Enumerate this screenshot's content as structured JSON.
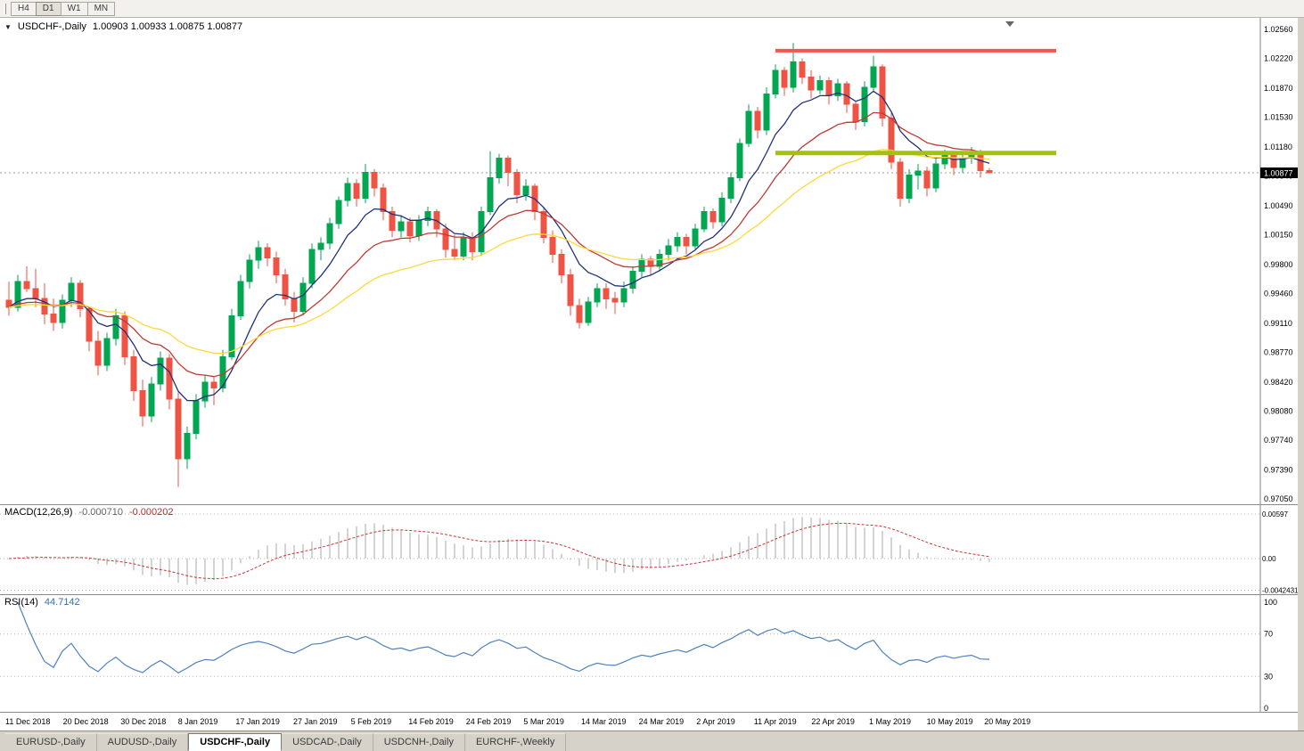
{
  "icons": {
    "dropdown": "▼",
    "shift_marker": "triangle-down"
  },
  "colors": {
    "up": "#00a650",
    "down": "#ef5343",
    "ma_fast": "#20317c",
    "ma_mid": "#c03a32",
    "ma_slow": "#ffd83a",
    "macd_hist": "#a8a8a8",
    "macd_signal": "#cc3333",
    "rsi_line": "#4f81bd",
    "resistance_line": "#f4564a",
    "support_line": "#a4c20a",
    "price_tag_bg": "#000000",
    "price_tag_text": "#ffffff",
    "dotted_level": "#b5b5b5",
    "current_price_line": "#999999"
  },
  "toolbar": {
    "timeframes": [
      {
        "label": "H4",
        "active": false
      },
      {
        "label": "D1",
        "active": true
      },
      {
        "label": "W1",
        "active": false
      },
      {
        "label": "MN",
        "active": false
      }
    ]
  },
  "chart_header": {
    "symbol": "USDCHF-,Daily",
    "ohlc_text": "1.00903 1.00933 1.00875 1.00877"
  },
  "price_axis": {
    "labels": [
      "1.02560",
      "1.02220",
      "1.01870",
      "1.01530",
      "1.01180",
      "1.00840",
      "1.00490",
      "1.00150",
      "0.99800",
      "0.99460",
      "0.99110",
      "0.98770",
      "0.98420",
      "0.98080",
      "0.97740",
      "0.97390",
      "0.97050"
    ],
    "current_price_label": "1.00877"
  },
  "macd_panel": {
    "name": "MACD(12,26,9)",
    "value_main": "-0.000710",
    "value_signal": "-0.000202",
    "scale_labels": [
      "0.00597",
      "0.00",
      "-0.0042431"
    ]
  },
  "rsi_panel": {
    "name": "RSI(14)",
    "value": "44.7142",
    "scale_labels": [
      "100",
      "70",
      "30",
      "0"
    ]
  },
  "date_axis": {
    "labels": [
      "11 Dec 2018",
      "20 Dec 2018",
      "30 Dec 2018",
      "8 Jan 2019",
      "17 Jan 2019",
      "27 Jan 2019",
      "5 Feb 2019",
      "14 Feb 2019",
      "24 Feb 2019",
      "5 Mar 2019",
      "14 Mar 2019",
      "24 Mar 2019",
      "2 Apr 2019",
      "11 Apr 2019",
      "22 Apr 2019",
      "1 May 2019",
      "10 May 2019",
      "20 May 2019"
    ]
  },
  "tabs": {
    "items": [
      {
        "label": "EURUSD-,Daily",
        "active": false
      },
      {
        "label": "AUDUSD-,Daily",
        "active": false
      },
      {
        "label": "USDCHF-,Daily",
        "active": true
      },
      {
        "label": "USDCAD-,Daily",
        "active": false
      },
      {
        "label": "USDCNH-,Daily",
        "active": false
      },
      {
        "label": "EURCHF-,Weekly",
        "active": false
      }
    ]
  },
  "chart_data": {
    "type": "candlestick",
    "title": "USDCHF-,Daily",
    "y_axis": {
      "min": 0.9705,
      "max": 1.0256
    },
    "current_price": 1.00877,
    "candles": [
      [
        0.9938,
        0.996,
        0.992,
        0.993
      ],
      [
        0.993,
        0.9968,
        0.9925,
        0.996
      ],
      [
        0.996,
        0.9978,
        0.9948,
        0.9952
      ],
      [
        0.9952,
        0.9975,
        0.993,
        0.994
      ],
      [
        0.994,
        0.9958,
        0.991,
        0.9922
      ],
      [
        0.9922,
        0.994,
        0.9902,
        0.9912
      ],
      [
        0.9912,
        0.9945,
        0.9905,
        0.9938
      ],
      [
        0.9938,
        0.9965,
        0.993,
        0.9958
      ],
      [
        0.9958,
        0.9962,
        0.9918,
        0.9928
      ],
      [
        0.9928,
        0.993,
        0.9878,
        0.989
      ],
      [
        0.989,
        0.9902,
        0.985,
        0.9862
      ],
      [
        0.9862,
        0.99,
        0.9855,
        0.9893
      ],
      [
        0.9893,
        0.9928,
        0.9885,
        0.992
      ],
      [
        0.992,
        0.9925,
        0.9862,
        0.9872
      ],
      [
        0.9872,
        0.988,
        0.982,
        0.9832
      ],
      [
        0.9832,
        0.9845,
        0.979,
        0.9802
      ],
      [
        0.9802,
        0.9848,
        0.9795,
        0.984
      ],
      [
        0.984,
        0.9878,
        0.9832,
        0.987
      ],
      [
        0.987,
        0.9875,
        0.981,
        0.9822
      ],
      [
        0.9822,
        0.983,
        0.9719,
        0.9752
      ],
      [
        0.9752,
        0.979,
        0.974,
        0.9782
      ],
      [
        0.9782,
        0.9828,
        0.9775,
        0.982
      ],
      [
        0.982,
        0.985,
        0.9812,
        0.9842
      ],
      [
        0.9842,
        0.9848,
        0.9815,
        0.9835
      ],
      [
        0.9835,
        0.988,
        0.983,
        0.9872
      ],
      [
        0.9872,
        0.9928,
        0.9868,
        0.992
      ],
      [
        0.992,
        0.9968,
        0.9915,
        0.996
      ],
      [
        0.996,
        0.9992,
        0.9952,
        0.9985
      ],
      [
        0.9985,
        1.0008,
        0.9975,
        1.0
      ],
      [
        1.0,
        1.0005,
        0.9978,
        0.9988
      ],
      [
        0.9988,
        0.9995,
        0.9958,
        0.9968
      ],
      [
        0.9968,
        0.9975,
        0.9932,
        0.994
      ],
      [
        0.994,
        0.9948,
        0.9912,
        0.9925
      ],
      [
        0.9925,
        0.9965,
        0.992,
        0.9958
      ],
      [
        0.9958,
        1.0005,
        0.9952,
        0.9998
      ],
      [
        0.9998,
        1.0012,
        0.9985,
        1.0005
      ],
      [
        1.0005,
        1.0035,
        0.9998,
        1.0028
      ],
      [
        1.0028,
        1.006,
        1.0022,
        1.0055
      ],
      [
        1.0055,
        1.0082,
        1.0048,
        1.0075
      ],
      [
        1.0075,
        1.008,
        1.0048,
        1.0058
      ],
      [
        1.0058,
        1.0098,
        1.0052,
        1.0088
      ],
      [
        1.0088,
        1.0092,
        1.006,
        1.007
      ],
      [
        1.007,
        1.0075,
        1.0032,
        1.0042
      ],
      [
        1.0042,
        1.0048,
        1.0012,
        1.002
      ],
      [
        1.002,
        1.0038,
        1.0012,
        1.003
      ],
      [
        1.003,
        1.0035,
        1.0006,
        1.0014
      ],
      [
        1.0014,
        1.0038,
        1.0008,
        1.0032
      ],
      [
        1.0032,
        1.0048,
        1.0025,
        1.0042
      ],
      [
        1.0042,
        1.0045,
        1.0012,
        1.0022
      ],
      [
        1.0022,
        1.0028,
        0.9988,
        0.9998
      ],
      [
        0.9998,
        1.0015,
        0.9985,
        0.999
      ],
      [
        0.999,
        1.0018,
        0.9985,
        1.0012
      ],
      [
        1.0012,
        1.0018,
        0.9985,
        0.9995
      ],
      [
        0.9995,
        1.0048,
        0.999,
        1.0042
      ],
      [
        1.0042,
        1.0113,
        1.0038,
        1.0082
      ],
      [
        1.0082,
        1.011,
        1.0075,
        1.0105
      ],
      [
        1.0105,
        1.0108,
        1.0072,
        1.0088
      ],
      [
        1.0088,
        1.0092,
        1.0052,
        1.0062
      ],
      [
        1.0062,
        1.008,
        1.0055,
        1.0072
      ],
      [
        1.0072,
        1.0075,
        1.0032,
        1.0042
      ],
      [
        1.0042,
        1.0048,
        1.0005,
        1.0012
      ],
      [
        1.0012,
        1.002,
        0.9982,
        0.9992
      ],
      [
        0.9992,
        0.9998,
        0.9958,
        0.9968
      ],
      [
        0.9968,
        0.9975,
        0.992,
        0.9932
      ],
      [
        0.9932,
        0.994,
        0.9905,
        0.9912
      ],
      [
        0.9912,
        0.9942,
        0.9908,
        0.9936
      ],
      [
        0.9936,
        0.9958,
        0.993,
        0.9952
      ],
      [
        0.9952,
        0.9958,
        0.9928,
        0.994
      ],
      [
        0.994,
        0.9948,
        0.9922,
        0.9936
      ],
      [
        0.9936,
        0.996,
        0.993,
        0.9952
      ],
      [
        0.9952,
        0.9978,
        0.9946,
        0.9972
      ],
      [
        0.9972,
        0.9992,
        0.9965,
        0.9986
      ],
      [
        0.9986,
        0.999,
        0.9968,
        0.9978
      ],
      [
        0.9978,
        0.9998,
        0.9972,
        0.9992
      ],
      [
        0.9992,
        1.001,
        0.9985,
        1.0002
      ],
      [
        1.0002,
        1.0018,
        0.9995,
        1.0012
      ],
      [
        1.0012,
        1.0016,
        0.9992,
        1.0002
      ],
      [
        1.0002,
        1.0028,
        0.9998,
        1.0022
      ],
      [
        1.0022,
        1.0048,
        1.0018,
        1.0042
      ],
      [
        1.0042,
        1.0046,
        1.0022,
        1.003
      ],
      [
        1.003,
        1.0065,
        1.0025,
        1.0058
      ],
      [
        1.0058,
        1.0088,
        1.0052,
        1.0082
      ],
      [
        1.0082,
        1.0128,
        1.0078,
        1.0122
      ],
      [
        1.0122,
        1.0168,
        1.0118,
        1.016
      ],
      [
        1.016,
        1.0165,
        1.0128,
        1.0138
      ],
      [
        1.0138,
        1.0188,
        1.0132,
        1.018
      ],
      [
        1.018,
        1.0215,
        1.0175,
        1.0208
      ],
      [
        1.0208,
        1.0212,
        1.0178,
        1.0188
      ],
      [
        1.0188,
        1.024,
        1.0182,
        1.0218
      ],
      [
        1.0218,
        1.0222,
        1.0192,
        1.02
      ],
      [
        1.02,
        1.0208,
        1.0175,
        1.0185
      ],
      [
        1.0185,
        1.0202,
        1.018,
        1.0196
      ],
      [
        1.0196,
        1.02,
        1.0168,
        1.0178
      ],
      [
        1.0178,
        1.0198,
        1.0172,
        1.0192
      ],
      [
        1.0192,
        1.0195,
        1.0158,
        1.0168
      ],
      [
        1.0168,
        1.0172,
        1.0138,
        1.0148
      ],
      [
        1.0148,
        1.0195,
        1.0142,
        1.0188
      ],
      [
        1.0188,
        1.0225,
        1.0182,
        1.0212
      ],
      [
        1.0212,
        1.0215,
        1.0142,
        1.0152
      ],
      [
        1.0152,
        1.0158,
        1.0092,
        1.01
      ],
      [
        1.01,
        1.0105,
        1.0048,
        1.0058
      ],
      [
        1.0058,
        1.0092,
        1.0052,
        1.0085
      ],
      [
        1.0085,
        1.0098,
        1.0068,
        1.009
      ],
      [
        1.009,
        1.0095,
        1.006,
        1.007
      ],
      [
        1.007,
        1.0105,
        1.0065,
        1.0098
      ],
      [
        1.0098,
        1.0115,
        1.0092,
        1.011
      ],
      [
        1.011,
        1.0112,
        1.0085,
        1.0094
      ],
      [
        1.0094,
        1.011,
        1.0088,
        1.0105
      ],
      [
        1.0105,
        1.0118,
        1.0098,
        1.0112
      ],
      [
        1.0112,
        1.0115,
        1.0082,
        1.009
      ],
      [
        1.00903,
        1.00933,
        1.00875,
        1.00877
      ]
    ],
    "moving_averages": [
      {
        "name": "ma-fast",
        "period": 8,
        "color_key": "ma_fast"
      },
      {
        "name": "ma-medium",
        "period": 17,
        "color_key": "ma_mid"
      },
      {
        "name": "ma-slow",
        "period": 34,
        "color_key": "ma_slow"
      }
    ],
    "hlines": [
      {
        "name": "resistance-line",
        "price": 1.0231,
        "from_index": 86,
        "to_index": 117.5,
        "color_key": "resistance_line",
        "thickness": 4
      },
      {
        "name": "support-line",
        "price": 1.0111,
        "from_index": 86,
        "to_index": 117.5,
        "color_key": "support_line",
        "thickness": 5
      }
    ],
    "macd": {
      "fast": 12,
      "slow": 26,
      "signal": 9,
      "ymax": 0.00597,
      "ymin": -0.0042431
    },
    "rsi": {
      "period": 14,
      "ymax": 100,
      "ymin": 0,
      "levels": [
        70,
        30
      ]
    }
  }
}
